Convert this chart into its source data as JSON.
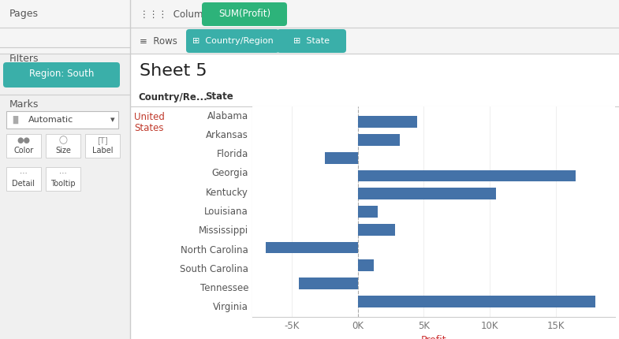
{
  "title": "Sheet 5",
  "states": [
    "Alabama",
    "Arkansas",
    "Florida",
    "Georgia",
    "Kentucky",
    "Louisiana",
    "Mississippi",
    "North Carolina",
    "South Carolina",
    "Tennessee",
    "Virginia"
  ],
  "values": [
    4500,
    3200,
    -2500,
    16500,
    10500,
    1500,
    2800,
    -7000,
    1200,
    -4500,
    18000
  ],
  "bar_color": "#4472A8",
  "xlim": [
    -8000,
    19500
  ],
  "xticks": [
    -5000,
    0,
    5000,
    10000,
    15000
  ],
  "xtick_labels": [
    "-5K",
    "0K",
    "5K",
    "10K",
    "15K"
  ],
  "xlabel": "Profit",
  "filter_pill_color": "#3aafa9",
  "filter_pill_text": "Region: South",
  "columns_pill_color": "#2db37a",
  "columns_text": "SUM(Profit)",
  "rows_pill_color": "#3aafa9",
  "rows_pill1_text": "Country/Region",
  "rows_pill2_text": "State",
  "country_label_line1": "United",
  "country_label_line2": "States",
  "col_header1": "Country/Re...",
  "col_header2": "State"
}
